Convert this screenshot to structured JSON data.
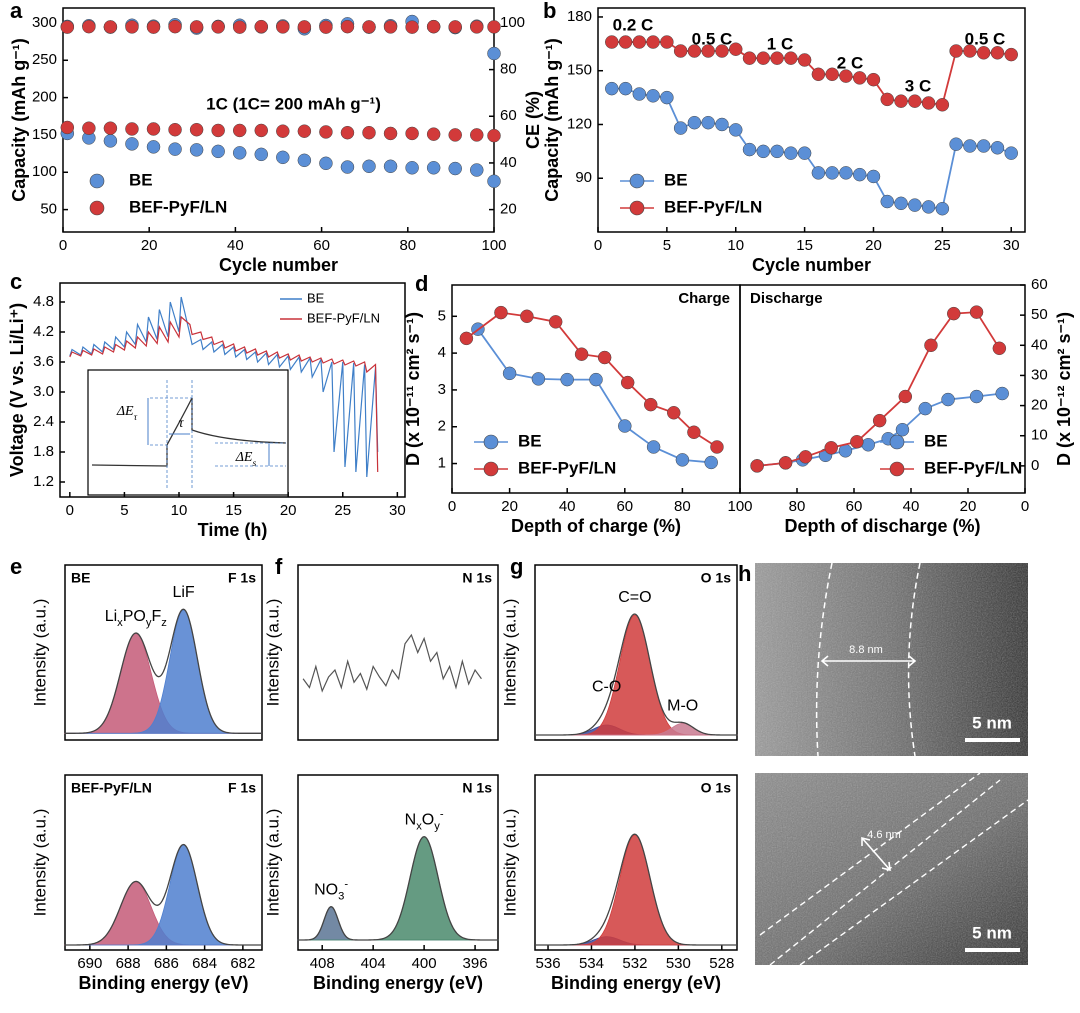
{
  "chart_data": [
    {
      "type": "scatter",
      "panel": "a",
      "xlabel": "Cycle number",
      "ylabel": "Capacity (mAh g⁻¹)",
      "y2label": "CE (%)",
      "annotation": "1C (1C= 200 mAh g⁻¹)",
      "xlim": [
        0,
        100
      ],
      "xticks": [
        0,
        20,
        40,
        60,
        80,
        100
      ],
      "ylim": [
        20,
        320
      ],
      "yticks": [
        50,
        100,
        150,
        200,
        250,
        300
      ],
      "y2lim": [
        10.4,
        106.4
      ],
      "y2ticks": [
        20,
        40,
        60,
        80,
        100
      ],
      "legend": "lower left",
      "x": [
        1,
        6,
        11,
        16,
        21,
        26,
        31,
        36,
        41,
        46,
        51,
        56,
        61,
        66,
        71,
        76,
        81,
        86,
        91,
        96,
        100
      ],
      "series": [
        {
          "name": "BE",
          "color": "#5b8fd6",
          "values": [
            152,
            146,
            142,
            138,
            134,
            131,
            130,
            128,
            126,
            124,
            120,
            116,
            112,
            107,
            108,
            108,
            106,
            106,
            105,
            103,
            88
          ]
        },
        {
          "name": "BEF-PyF/LN",
          "color": "#d23a3a",
          "values": [
            160,
            159,
            159,
            158,
            158,
            157,
            157,
            156,
            156,
            156,
            155,
            155,
            154,
            153,
            153,
            152,
            152,
            151,
            150,
            150,
            149
          ]
        },
        {
          "color": "#5b8fd6",
          "axis": "y2",
          "values": [
            98.5,
            98.8,
            98.2,
            99,
            98.6,
            99.2,
            97.8,
            98.5,
            99,
            98.3,
            98.7,
            97.5,
            98.9,
            99.6,
            98.2,
            98.8,
            100.6,
            98.4,
            98,
            98.6,
            86.9
          ]
        },
        {
          "color": "#d23a3a",
          "axis": "y2",
          "values": [
            98.2,
            98.4,
            98.3,
            98.3,
            98.2,
            98.4,
            98.3,
            98.3,
            98.2,
            98.4,
            98.3,
            98.3,
            98.2,
            98.4,
            98.3,
            98.3,
            98.2,
            98.4,
            98.3,
            98.3,
            98.3
          ]
        }
      ]
    },
    {
      "type": "line",
      "markers": true,
      "panel": "b",
      "xlabel": "Cycle number",
      "ylabel": "Capacity (mAh g⁻¹)",
      "annotations": [
        "0.2 C",
        "0.5 C",
        "1 C",
        "2 C",
        "3 C",
        "0.5 C"
      ],
      "xlim": [
        0,
        31
      ],
      "xticks": [
        0,
        5,
        10,
        15,
        20,
        25,
        30
      ],
      "ylim": [
        60,
        185
      ],
      "yticks": [
        90,
        120,
        150,
        180
      ],
      "legend": "lower left",
      "x": [
        1,
        2,
        3,
        4,
        5,
        6,
        7,
        8,
        9,
        10,
        11,
        12,
        13,
        14,
        15,
        16,
        17,
        18,
        19,
        20,
        21,
        22,
        23,
        24,
        25,
        26,
        27,
        28,
        29,
        30
      ],
      "series": [
        {
          "name": "BE",
          "color": "#5b8fd6",
          "values": [
            140,
            140,
            137,
            136,
            135,
            118,
            121,
            121,
            120,
            117,
            106,
            105,
            105,
            104,
            104,
            93,
            93,
            93,
            92,
            91,
            77,
            76,
            75,
            74,
            73,
            109,
            108,
            108,
            107,
            104
          ]
        },
        {
          "name": "BEF-PyF/LN",
          "color": "#d23a3a",
          "values": [
            166,
            166,
            166,
            166,
            166,
            161,
            161,
            161,
            161,
            162,
            157,
            157,
            157,
            157,
            156,
            148,
            148,
            147,
            146,
            145,
            134,
            133,
            133,
            132,
            131,
            161,
            161,
            160,
            160,
            159
          ]
        }
      ]
    },
    {
      "type": "line",
      "panel": "c",
      "xlabel": "Time (h)",
      "ylabel": "Voltage (V vs. Li/Li⁺)",
      "legend": "upper right",
      "xlim": [
        -0.9,
        30.7
      ],
      "xticks": [
        0,
        5,
        10,
        15,
        20,
        25,
        30
      ],
      "ylim": [
        0.9,
        5.18
      ],
      "yticks": [
        1.2,
        1.8,
        2.4,
        {
          "value": 3,
          "label": "3.0"
        },
        3.6,
        4.2,
        4.8
      ],
      "inset_labels": [
        [
          {
            "t": "ΔE"
          },
          {
            "t": "τ",
            "s": "sub"
          }
        ],
        [
          {
            "t": "τ"
          }
        ],
        [
          {
            "t": "ΔE"
          },
          {
            "t": "s",
            "s": "sub"
          }
        ]
      ],
      "x": [
        0,
        0.2,
        1,
        1.2,
        2,
        2.2,
        3,
        3.2,
        4,
        4.2,
        5,
        5.2,
        6,
        6.2,
        7,
        7.2,
        8,
        8.2,
        9,
        9.2,
        10,
        10.2,
        11,
        11.2,
        12,
        12.2,
        13,
        13.2,
        14,
        14.2,
        15,
        15.2,
        16,
        16.2,
        17,
        17.2,
        18,
        18.2,
        19,
        19.2,
        20,
        20.2,
        21,
        21.2,
        22,
        22.2,
        23,
        23.2,
        24,
        24.2,
        25,
        25.2,
        26,
        26.2,
        27,
        27.2,
        28,
        28.2
      ],
      "series": [
        {
          "name": "BE",
          "color": "#3f7fc8",
          "values": [
            3.72,
            3.85,
            3.74,
            3.9,
            3.76,
            3.95,
            3.8,
            4.0,
            3.85,
            4.1,
            3.9,
            4.2,
            3.95,
            4.35,
            4.0,
            4.5,
            4.05,
            4.65,
            4.1,
            4.8,
            4.2,
            4.9,
            4.15,
            3.95,
            4.05,
            3.85,
            4.0,
            3.8,
            3.95,
            3.75,
            3.9,
            3.7,
            3.85,
            3.65,
            3.8,
            3.6,
            3.78,
            3.55,
            3.75,
            3.5,
            3.72,
            3.45,
            3.7,
            3.4,
            3.68,
            3.3,
            3.65,
            3.0,
            3.6,
            1.8,
            3.6,
            1.5,
            3.58,
            1.4,
            3.55,
            1.3,
            3.5,
            1.8
          ]
        },
        {
          "name": "BEF-PyF/LN",
          "color": "#c8323a",
          "values": [
            3.7,
            3.8,
            3.72,
            3.83,
            3.74,
            3.86,
            3.76,
            3.9,
            3.8,
            3.95,
            3.84,
            4.02,
            3.88,
            4.1,
            3.92,
            4.2,
            3.97,
            4.3,
            4.0,
            4.4,
            4.1,
            4.5,
            4.35,
            4.15,
            4.2,
            4.05,
            4.1,
            3.95,
            4.02,
            3.88,
            3.96,
            3.82,
            3.9,
            3.78,
            3.86,
            3.74,
            3.82,
            3.7,
            3.8,
            3.68,
            3.76,
            3.64,
            3.74,
            3.62,
            3.7,
            3.6,
            3.68,
            3.58,
            3.66,
            3.56,
            3.64,
            3.54,
            3.62,
            3.52,
            3.6,
            3.4,
            3.55,
            1.4
          ]
        }
      ]
    },
    {
      "type": "line",
      "markers": true,
      "panel": "d",
      "title": "Charge",
      "xlabel": "Depth of charge (%)",
      "ylabel": "D (x 10⁻¹¹ cm² s⁻¹)",
      "legend": "lower left",
      "xlim": [
        0,
        100
      ],
      "xticks": [
        0,
        20,
        40,
        60,
        80
      ],
      "ylim": [
        0.2,
        5.85
      ],
      "yticks": [
        1,
        2,
        3,
        4,
        5
      ],
      "series": [
        {
          "name": "BE",
          "color": "#5b8fd6",
          "x": [
            9,
            20,
            30,
            40,
            50,
            60,
            70,
            80,
            90
          ],
          "values": [
            4.65,
            3.45,
            3.3,
            3.28,
            3.28,
            2.02,
            1.45,
            1.1,
            1.03
          ]
        },
        {
          "name": "BEF-PyF/LN",
          "color": "#d23a3a",
          "x": [
            5,
            17,
            26,
            36,
            45,
            53,
            61,
            69,
            77,
            84,
            92
          ],
          "values": [
            4.4,
            5.1,
            5.0,
            4.85,
            3.97,
            3.88,
            3.2,
            2.6,
            2.38,
            1.85,
            1.45
          ]
        }
      ]
    },
    {
      "type": "line",
      "markers": true,
      "title": "Discharge",
      "xlabel": "Depth of discharge (%)",
      "y2label": "D (x 10⁻¹² cm² s⁻¹)",
      "legend": "lower right",
      "xlim": [
        100,
        0
      ],
      "xticks": [
        100,
        80,
        60,
        40,
        20,
        0
      ],
      "y2lim": [
        -9,
        60
      ],
      "y2ticks": [
        0,
        10,
        20,
        30,
        40,
        50,
        60
      ],
      "series": [
        {
          "name": "BE",
          "color": "#5b8fd6",
          "axis": "y2",
          "x": [
            94,
            84,
            78,
            70,
            63,
            55,
            48,
            43,
            35,
            27,
            17,
            8
          ],
          "values": [
            0,
            1,
            2,
            3.5,
            5,
            7,
            9,
            12,
            19,
            22,
            23,
            24
          ]
        },
        {
          "name": "BEF-PyF/LN",
          "color": "#d23a3a",
          "axis": "y2",
          "x": [
            94,
            84,
            77,
            68,
            59,
            51,
            42,
            33,
            25,
            17,
            9
          ],
          "values": [
            0,
            1,
            3,
            6,
            8,
            15,
            23,
            40,
            50.5,
            51,
            39
          ]
        }
      ]
    },
    {
      "type": "xps",
      "panel": "e",
      "sample": "BE",
      "region": "F 1s",
      "ylabel": "Intensity (a.u.)",
      "xlim": [
        691.3,
        681
      ],
      "ylim": [
        0,
        1.05
      ],
      "baseline": 0.04,
      "peaks": [
        {
          "label": [
            {
              "t": "Li"
            },
            {
              "t": "x",
              "s": "sub"
            },
            {
              "t": "PO"
            },
            {
              "t": "y",
              "s": "sub"
            },
            {
              "t": "F"
            },
            {
              "t": "z",
              "s": "sub"
            }
          ],
          "center": 687.6,
          "height": 0.6,
          "width": 0.8,
          "color": "#c45a78"
        },
        {
          "label": [
            {
              "t": "LiF"
            }
          ],
          "center": 685.1,
          "height": 0.74,
          "width": 0.72,
          "color": "#4f7fcf"
        }
      ]
    },
    {
      "type": "xps",
      "panel": "f",
      "region": "N 1s",
      "ylabel": "Intensity (a.u.)",
      "xlim": [
        409.9,
        394.2
      ],
      "ylim": [
        0,
        1
      ],
      "spectrum": {
        "x": [
          409.5,
          409,
          408.5,
          408,
          407.5,
          407,
          406.5,
          406,
          405.5,
          405,
          404.5,
          404,
          403.5,
          403,
          402.5,
          402,
          401.5,
          401,
          400.5,
          400,
          399.5,
          399,
          398.5,
          398,
          397.5,
          397,
          396.5,
          396,
          395.5
        ],
        "values": [
          0.35,
          0.3,
          0.42,
          0.28,
          0.36,
          0.4,
          0.3,
          0.45,
          0.33,
          0.38,
          0.29,
          0.42,
          0.36,
          0.31,
          0.4,
          0.35,
          0.55,
          0.6,
          0.5,
          0.58,
          0.45,
          0.5,
          0.35,
          0.42,
          0.3,
          0.45,
          0.32,
          0.4,
          0.35
        ]
      }
    },
    {
      "type": "xps",
      "panel": "g",
      "region": "O 1s",
      "ylabel": "Intensity (a.u.)",
      "xlim": [
        536.6,
        527.3
      ],
      "ylim": [
        0,
        1.05
      ],
      "baseline": 0.03,
      "peaks": [
        {
          "label": [
            {
              "t": "C-O"
            }
          ],
          "center": 533.3,
          "height": 0.06,
          "width": 0.6,
          "color": "#3a4a9a"
        },
        {
          "label": [
            {
              "t": "C=O"
            }
          ],
          "center": 532,
          "height": 0.72,
          "width": 0.7,
          "color": "#d03c3c"
        },
        {
          "label": [
            {
              "t": "M-O"
            }
          ],
          "center": 529.8,
          "height": 0.07,
          "width": 0.5,
          "color": "#c97a90"
        }
      ]
    },
    {
      "type": "xps",
      "sample": "BEF-PyF/LN",
      "region": "F 1s",
      "ylabel": "Intensity (a.u.)",
      "xlabel": "Binding energy (eV)",
      "xlim": [
        691.3,
        681
      ],
      "xticks": [
        690,
        688,
        686,
        684,
        682
      ],
      "ylim": [
        0,
        1.05
      ],
      "baseline": 0.03,
      "peaks": [
        {
          "center": 687.6,
          "height": 0.38,
          "width": 0.8,
          "color": "#c45a78"
        },
        {
          "center": 685.1,
          "height": 0.6,
          "width": 0.72,
          "color": "#4f7fcf"
        }
      ]
    },
    {
      "type": "xps",
      "region": "N 1s",
      "ylabel": "Intensity (a.u.)",
      "xlabel": "Binding energy (eV)",
      "xlim": [
        409.9,
        394.2
      ],
      "xticks": [
        408,
        404,
        400,
        396
      ],
      "ylim": [
        0,
        1.05
      ],
      "baseline": 0.06,
      "peaks": [
        {
          "label": [
            {
              "t": "NO"
            },
            {
              "t": "3",
              "s": "sub"
            },
            {
              "t": "-",
              "s": "sup"
            }
          ],
          "center": 407.3,
          "height": 0.2,
          "width": 0.55,
          "color": "#5a7494"
        },
        {
          "label": [
            {
              "t": "N"
            },
            {
              "t": "x",
              "s": "sub"
            },
            {
              "t": "O"
            },
            {
              "t": "y",
              "s": "sub"
            },
            {
              "t": "-",
              "s": "sup"
            }
          ],
          "center": 400,
          "height": 0.62,
          "width": 1.1,
          "color": "#4a8a6c"
        }
      ]
    },
    {
      "type": "xps",
      "region": "O 1s",
      "ylabel": "Intensity (a.u.)",
      "xlabel": "Binding energy (eV)",
      "xlim": [
        536.6,
        527.3
      ],
      "xticks": [
        536,
        534,
        532,
        530,
        528
      ],
      "ylim": [
        0,
        1.05
      ],
      "baseline": 0.03,
      "peaks": [
        {
          "center": 533.3,
          "height": 0.05,
          "width": 0.6,
          "color": "#3a4a9a"
        },
        {
          "center": 532,
          "height": 0.66,
          "width": 0.7,
          "color": "#d03c3c"
        }
      ]
    }
  ],
  "images": [
    {
      "panel": "h",
      "measure": "8.8 nm",
      "scale": "5 nm"
    },
    {
      "measure": "4.6 nm",
      "scale": "5 nm"
    }
  ]
}
